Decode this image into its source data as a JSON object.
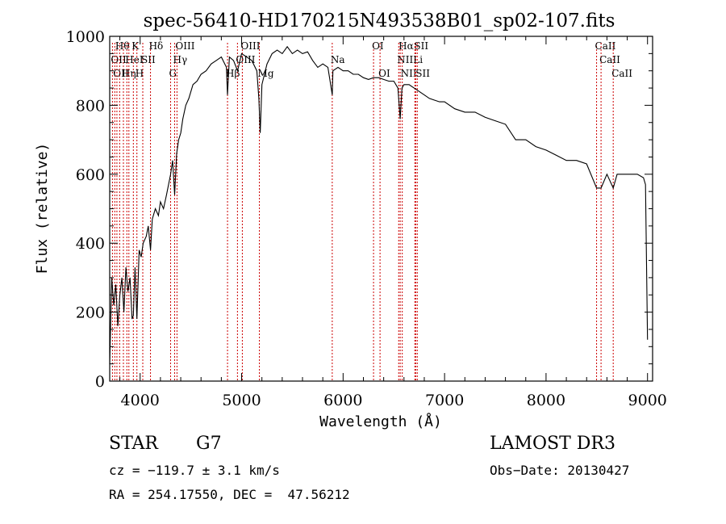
{
  "chart_data": {
    "type": "line",
    "title": "spec-56410-HD170215N493538B01_sp02-107.fits",
    "xlabel": "Wavelength (Å)",
    "ylabel": "Flux (relative)",
    "xlim": [
      3700,
      9050
    ],
    "ylim": [
      0,
      1000
    ],
    "xticks": [
      4000,
      5000,
      6000,
      7000,
      8000,
      9000
    ],
    "yticks": [
      0,
      200,
      400,
      600,
      800,
      1000
    ],
    "grid": false,
    "line_color": "#000000",
    "marker_color": "#cc0000",
    "series": [
      {
        "x": [
          3700,
          3720,
          3740,
          3760,
          3780,
          3800,
          3820,
          3840,
          3860,
          3880,
          3900,
          3920,
          3933,
          3950,
          3968,
          3990,
          4010,
          4030,
          4060,
          4080,
          4102,
          4120,
          4150,
          4180,
          4200,
          4230,
          4260,
          4300,
          4320,
          4340,
          4360,
          4380,
          4400,
          4420,
          4450,
          4480,
          4520,
          4560,
          4600,
          4650,
          4700,
          4750,
          4800,
          4850,
          4861,
          4880,
          4920,
          4960,
          5000,
          5050,
          5100,
          5150,
          5170,
          5183,
          5200,
          5250,
          5300,
          5350,
          5400,
          5450,
          5500,
          5550,
          5600,
          5650,
          5700,
          5750,
          5800,
          5850,
          5893,
          5900,
          5950,
          6000,
          6050,
          6100,
          6150,
          6200,
          6250,
          6300,
          6350,
          6400,
          6450,
          6500,
          6540,
          6563,
          6580,
          6600,
          6650,
          6700,
          6750,
          6800,
          6850,
          6900,
          6950,
          7000,
          7100,
          7200,
          7300,
          7400,
          7500,
          7600,
          7700,
          7800,
          7900,
          8000,
          8100,
          8200,
          8300,
          8400,
          8498,
          8542,
          8600,
          8662,
          8700,
          8800,
          8900,
          8960,
          8980,
          9000
        ],
        "y": [
          50,
          300,
          220,
          280,
          160,
          250,
          300,
          200,
          330,
          260,
          300,
          180,
          190,
          330,
          180,
          380,
          360,
          400,
          420,
          450,
          380,
          470,
          500,
          480,
          520,
          500,
          540,
          600,
          640,
          540,
          660,
          700,
          720,
          760,
          800,
          820,
          860,
          870,
          890,
          900,
          920,
          930,
          940,
          910,
          830,
          940,
          930,
          900,
          950,
          940,
          930,
          900,
          820,
          720,
          860,
          920,
          950,
          960,
          950,
          970,
          950,
          960,
          950,
          955,
          930,
          910,
          920,
          910,
          830,
          900,
          910,
          900,
          900,
          890,
          890,
          880,
          875,
          880,
          880,
          875,
          870,
          870,
          850,
          760,
          850,
          860,
          860,
          850,
          840,
          830,
          820,
          815,
          810,
          810,
          790,
          780,
          780,
          765,
          755,
          745,
          700,
          700,
          680,
          670,
          655,
          640,
          640,
          630,
          560,
          560,
          600,
          560,
          600,
          600,
          600,
          590,
          570,
          120
        ]
      }
    ],
    "line_markers": [
      {
        "wl": 3727,
        "row": 1,
        "label": "OII"
      },
      {
        "wl": 3750,
        "row": 2,
        "label": "OII"
      },
      {
        "wl": 3771,
        "row": 0,
        "label": "Hθ"
      },
      {
        "wl": 3798,
        "row": 1,
        "label": ""
      },
      {
        "wl": 3835,
        "row": 2,
        "label": "Hη"
      },
      {
        "wl": 3869,
        "row": 1,
        "label": "HeI"
      },
      {
        "wl": 3889,
        "row": 1,
        "label": ""
      },
      {
        "wl": 3933,
        "row": 0,
        "label": "K"
      },
      {
        "wl": 3968,
        "row": 2,
        "label": "H"
      },
      {
        "wl": 4026,
        "row": 1,
        "label": "SII"
      },
      {
        "wl": 4102,
        "row": 0,
        "label": "Hδ"
      },
      {
        "wl": 4300,
        "row": 2,
        "label": "G"
      },
      {
        "wl": 4340,
        "row": 1,
        "label": "Hγ"
      },
      {
        "wl": 4363,
        "row": 0,
        "label": "OIII"
      },
      {
        "wl": 4861,
        "row": 2,
        "label": "Hβ"
      },
      {
        "wl": 4959,
        "row": 1,
        "label": "OIII"
      },
      {
        "wl": 5007,
        "row": 0,
        "label": "OIII"
      },
      {
        "wl": 5175,
        "row": 2,
        "label": "Mg"
      },
      {
        "wl": 5893,
        "row": 1,
        "label": "Na"
      },
      {
        "wl": 6300,
        "row": 0,
        "label": "OI"
      },
      {
        "wl": 6364,
        "row": 2,
        "label": "OI"
      },
      {
        "wl": 6548,
        "row": 1,
        "label": "NII"
      },
      {
        "wl": 6563,
        "row": 0,
        "label": "Hα"
      },
      {
        "wl": 6583,
        "row": 2,
        "label": "NII"
      },
      {
        "wl": 6707,
        "row": 1,
        "label": "Li"
      },
      {
        "wl": 6716,
        "row": 0,
        "label": "SII"
      },
      {
        "wl": 6731,
        "row": 2,
        "label": "SII"
      },
      {
        "wl": 8498,
        "row": 0,
        "label": "CaII"
      },
      {
        "wl": 8542,
        "row": 1,
        "label": "CaII"
      },
      {
        "wl": 8662,
        "row": 2,
        "label": "CaII"
      }
    ]
  },
  "info": {
    "object_class": "STAR",
    "subclass": "G7",
    "survey": "LAMOST DR3",
    "redshift": "cz = −119.7 ± 3.1 km/s",
    "obs_date": "Obs−Date: 20130427",
    "coords": "RA = 254.17550, DEC =  47.56212"
  }
}
